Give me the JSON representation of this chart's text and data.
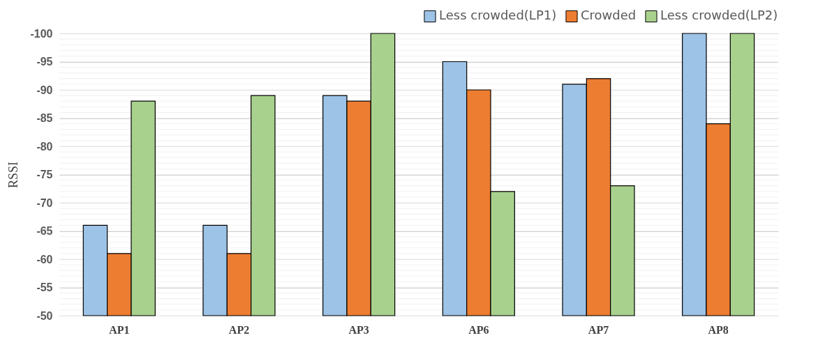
{
  "chart_data": {
    "type": "bar",
    "ylabel": "RSSI",
    "categories": [
      "AP1",
      "AP2",
      "AP3",
      "AP6",
      "AP7",
      "AP8"
    ],
    "series": [
      {
        "name": "Less crowded(LP1)",
        "color": "#9dc3e6",
        "values": [
          -66,
          -66,
          -89,
          -95,
          -91,
          -100
        ]
      },
      {
        "name": "Crowded",
        "color": "#ed7d31",
        "values": [
          -61,
          -61,
          -88,
          -90,
          -92,
          -84
        ]
      },
      {
        "name": "Less crowded(LP2)",
        "color": "#a9d18e",
        "values": [
          -88,
          -89,
          -100,
          -72,
          -73,
          -100
        ]
      }
    ],
    "ylim": [
      -50,
      -100
    ],
    "yticks": [
      -50,
      -55,
      -60,
      -65,
      -70,
      -75,
      -80,
      -85,
      -90,
      -95,
      -100
    ],
    "grid": true,
    "legend": "top right"
  }
}
